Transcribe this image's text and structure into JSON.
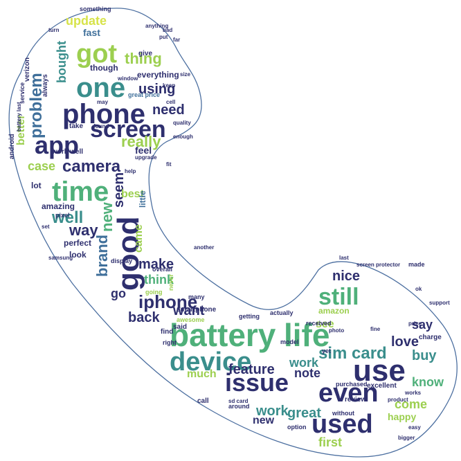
{
  "palette": {
    "navy": "#2e2f6e",
    "indigo": "#3b4a8a",
    "blue": "#3f6f9a",
    "teal": "#3a8e8c",
    "green": "#4fb07a",
    "lime": "#9ccf4f",
    "yellow": "#d7e34a",
    "outline": "#4c6fa0"
  },
  "words": [
    {
      "t": "battery",
      "c": "green"
    },
    {
      "t": "life",
      "c": "green"
    },
    {
      "t": "phone",
      "c": "navy"
    },
    {
      "t": "screen",
      "c": "navy"
    },
    {
      "t": "app",
      "c": "navy"
    },
    {
      "t": "time",
      "c": "green"
    },
    {
      "t": "good",
      "c": "navy"
    },
    {
      "t": "one",
      "c": "teal"
    },
    {
      "t": "got",
      "c": "lime"
    },
    {
      "t": "device",
      "c": "teal"
    },
    {
      "t": "issue",
      "c": "navy"
    },
    {
      "t": "use",
      "c": "navy"
    },
    {
      "t": "even",
      "c": "navy"
    },
    {
      "t": "used",
      "c": "navy"
    },
    {
      "t": "still",
      "c": "green"
    },
    {
      "t": "iphone",
      "c": "navy"
    },
    {
      "t": "camera",
      "c": "navy"
    },
    {
      "t": "problem",
      "c": "blue"
    },
    {
      "t": "update",
      "c": "yellow"
    },
    {
      "t": "thing",
      "c": "lime"
    },
    {
      "t": "using",
      "c": "navy"
    },
    {
      "t": "need",
      "c": "navy"
    },
    {
      "t": "really",
      "c": "lime"
    },
    {
      "t": "well",
      "c": "teal"
    },
    {
      "t": "way",
      "c": "navy"
    },
    {
      "t": "new",
      "c": "green"
    },
    {
      "t": "case",
      "c": "lime"
    },
    {
      "t": "seem",
      "c": "navy"
    },
    {
      "t": "brand",
      "c": "blue"
    },
    {
      "t": "came",
      "c": "lime"
    },
    {
      "t": "make",
      "c": "navy"
    },
    {
      "t": "think",
      "c": "green"
    },
    {
      "t": "go",
      "c": "navy"
    },
    {
      "t": "want",
      "c": "navy"
    },
    {
      "t": "back",
      "c": "navy"
    },
    {
      "t": "nice",
      "c": "navy"
    },
    {
      "t": "sim card",
      "c": "teal"
    },
    {
      "t": "buy",
      "c": "teal"
    },
    {
      "t": "say",
      "c": "navy"
    },
    {
      "t": "love",
      "c": "navy"
    },
    {
      "t": "know",
      "c": "green"
    },
    {
      "t": "see",
      "c": "lime"
    },
    {
      "t": "work",
      "c": "teal"
    },
    {
      "t": "note",
      "c": "navy"
    },
    {
      "t": "feature",
      "c": "navy"
    },
    {
      "t": "much",
      "c": "lime"
    },
    {
      "t": "come",
      "c": "lime"
    },
    {
      "t": "work",
      "c": "teal"
    },
    {
      "t": "great",
      "c": "teal"
    },
    {
      "t": "new",
      "c": "navy"
    },
    {
      "t": "first",
      "c": "lime"
    },
    {
      "t": "happy",
      "c": "lime"
    },
    {
      "t": "bought",
      "c": "teal"
    },
    {
      "t": "better",
      "c": "lime"
    },
    {
      "t": "fast",
      "c": "blue"
    },
    {
      "t": "though",
      "c": "navy"
    },
    {
      "t": "everything",
      "c": "navy"
    },
    {
      "t": "feel",
      "c": "navy"
    },
    {
      "t": "best",
      "c": "lime"
    },
    {
      "t": "little",
      "c": "blue"
    },
    {
      "t": "lot",
      "c": "navy"
    },
    {
      "t": "android",
      "c": "navy"
    },
    {
      "t": "amazing",
      "c": "navy"
    },
    {
      "t": "perfect",
      "c": "navy"
    },
    {
      "t": "look",
      "c": "navy"
    },
    {
      "t": "amazon",
      "c": "lime"
    },
    {
      "t": "verizon",
      "c": "navy"
    },
    {
      "t": "give",
      "c": "navy"
    },
    {
      "t": "something",
      "c": "navy"
    },
    {
      "t": "always",
      "c": "navy"
    },
    {
      "t": "take",
      "c": "navy"
    },
    {
      "t": "work well",
      "c": "navy"
    },
    {
      "t": "great price",
      "c": "blue"
    },
    {
      "t": "smartphone",
      "c": "navy"
    },
    {
      "t": "received",
      "c": "navy"
    },
    {
      "t": "said",
      "c": "navy"
    },
    {
      "t": "find",
      "c": "navy"
    },
    {
      "t": "right",
      "c": "navy"
    },
    {
      "t": "call",
      "c": "navy"
    },
    {
      "t": "many",
      "c": "navy"
    },
    {
      "t": "charge",
      "c": "navy"
    },
    {
      "t": "excellent",
      "c": "navy"
    },
    {
      "t": "review",
      "c": "navy"
    },
    {
      "t": "pixel",
      "c": "navy"
    },
    {
      "t": "service",
      "c": "navy"
    },
    {
      "t": "may",
      "c": "navy"
    },
    {
      "t": "cell",
      "c": "navy"
    },
    {
      "t": "getting",
      "c": "navy"
    },
    {
      "t": "actually",
      "c": "navy"
    },
    {
      "t": "model",
      "c": "navy"
    },
    {
      "t": "yet",
      "c": "navy"
    },
    {
      "t": "purchased",
      "c": "navy"
    },
    {
      "t": "around",
      "c": "navy"
    },
    {
      "t": "display",
      "c": "navy"
    },
    {
      "t": "overall",
      "c": "navy"
    },
    {
      "t": "never",
      "c": "lime"
    },
    {
      "t": "going",
      "c": "lime"
    },
    {
      "t": "awesome",
      "c": "lime"
    },
    {
      "t": "option",
      "c": "navy"
    },
    {
      "t": "without",
      "c": "navy"
    },
    {
      "t": "sd card",
      "c": "navy"
    },
    {
      "t": "made",
      "c": "navy"
    },
    {
      "t": "keep",
      "c": "navy"
    },
    {
      "t": "put",
      "c": "navy"
    },
    {
      "t": "far",
      "c": "navy"
    },
    {
      "t": "found",
      "c": "navy"
    },
    {
      "t": "anything",
      "c": "navy"
    },
    {
      "t": "turn",
      "c": "navy"
    },
    {
      "t": "bad",
      "c": "navy"
    },
    {
      "t": "window",
      "c": "navy"
    },
    {
      "t": "product",
      "c": "navy"
    },
    {
      "t": "photo",
      "c": "navy"
    },
    {
      "t": "set",
      "c": "navy"
    },
    {
      "t": "fine",
      "c": "navy"
    },
    {
      "t": "ok",
      "c": "navy"
    },
    {
      "t": "support",
      "c": "navy"
    },
    {
      "t": "price",
      "c": "navy"
    },
    {
      "t": "fit",
      "c": "navy"
    },
    {
      "t": "quality",
      "c": "navy"
    },
    {
      "t": "help",
      "c": "navy"
    },
    {
      "t": "another",
      "c": "navy"
    },
    {
      "t": "upgrade",
      "c": "navy"
    },
    {
      "t": "samsung",
      "c": "navy"
    },
    {
      "t": "last",
      "c": "navy"
    },
    {
      "t": "easy",
      "c": "navy"
    },
    {
      "t": "works",
      "c": "navy"
    },
    {
      "t": "screen protector",
      "c": "navy"
    },
    {
      "t": "battery last",
      "c": "navy"
    },
    {
      "t": "enough",
      "c": "navy"
    },
    {
      "t": "bigger",
      "c": "navy"
    },
    {
      "t": "size",
      "c": "navy"
    },
    {
      "t": "storage",
      "c": "navy"
    },
    {
      "t": "carrier",
      "c": "navy"
    }
  ]
}
